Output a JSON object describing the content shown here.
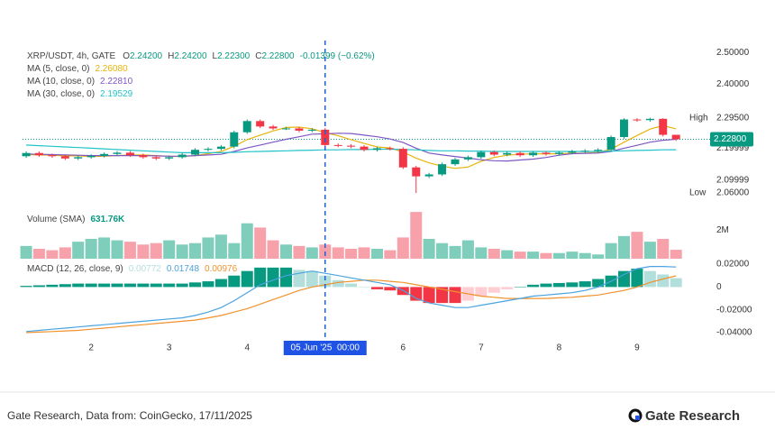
{
  "chart_data": [
    {
      "type": "candlestick",
      "title": "XRP/USDT, 4h, GATE",
      "ohlc_legend": [
        {
          "label": "O",
          "value": "2.24200"
        },
        {
          "label": "H",
          "value": "2.24200"
        },
        {
          "label": "L",
          "value": "2.22300"
        },
        {
          "label": "C",
          "value": "2.22800"
        }
      ],
      "change": "-0.01399 (−0.62%)",
      "x": [
        1.167,
        1.333,
        1.5,
        1.667,
        1.833,
        2,
        2.167,
        2.333,
        2.5,
        2.667,
        2.833,
        3,
        3.167,
        3.333,
        3.5,
        3.667,
        3.833,
        4,
        4.167,
        4.333,
        4.5,
        4.667,
        4.833,
        5,
        5.167,
        5.333,
        5.5,
        5.667,
        5.833,
        6,
        6.167,
        6.333,
        6.5,
        6.667,
        6.833,
        7,
        7.167,
        7.333,
        7.5,
        7.667,
        7.833,
        8,
        8.167,
        8.333,
        8.5,
        8.667,
        8.833,
        9,
        9.167,
        9.333,
        9.5
      ],
      "open": [
        2.175,
        2.185,
        2.178,
        2.175,
        2.168,
        2.172,
        2.176,
        2.182,
        2.186,
        2.178,
        2.172,
        2.168,
        2.172,
        2.18,
        2.195,
        2.198,
        2.205,
        2.25,
        2.285,
        2.268,
        2.262,
        2.262,
        2.255,
        2.258,
        2.21,
        2.208,
        2.205,
        2.195,
        2.2,
        2.198,
        2.14,
        2.112,
        2.118,
        2.15,
        2.165,
        2.172,
        2.188,
        2.18,
        2.185,
        2.178,
        2.186,
        2.182,
        2.186,
        2.19,
        2.192,
        2.195,
        2.235,
        2.29,
        2.288,
        2.292,
        2.242
      ],
      "high": [
        2.19,
        2.19,
        2.183,
        2.18,
        2.177,
        2.181,
        2.187,
        2.191,
        2.191,
        2.183,
        2.177,
        2.177,
        2.185,
        2.2,
        2.203,
        2.21,
        2.255,
        2.29,
        2.29,
        2.273,
        2.267,
        2.267,
        2.263,
        2.263,
        2.215,
        2.213,
        2.21,
        2.205,
        2.205,
        2.203,
        2.145,
        2.123,
        2.155,
        2.17,
        2.177,
        2.193,
        2.193,
        2.19,
        2.19,
        2.191,
        2.191,
        2.191,
        2.195,
        2.197,
        2.2,
        2.24,
        2.294,
        2.294,
        2.295,
        2.294,
        2.242
      ],
      "low": [
        2.17,
        2.173,
        2.17,
        2.163,
        2.163,
        2.167,
        2.171,
        2.177,
        2.173,
        2.167,
        2.163,
        2.163,
        2.167,
        2.175,
        2.19,
        2.193,
        2.2,
        2.245,
        2.263,
        2.257,
        2.257,
        2.25,
        2.25,
        2.205,
        2.203,
        2.2,
        2.19,
        2.19,
        2.193,
        2.135,
        2.06,
        2.107,
        2.113,
        2.145,
        2.16,
        2.167,
        2.175,
        2.175,
        2.173,
        2.173,
        2.177,
        2.177,
        2.181,
        2.185,
        2.187,
        2.19,
        2.23,
        2.283,
        2.283,
        2.237,
        2.223
      ],
      "close": [
        2.185,
        2.178,
        2.175,
        2.168,
        2.172,
        2.176,
        2.182,
        2.186,
        2.178,
        2.172,
        2.168,
        2.172,
        2.18,
        2.195,
        2.198,
        2.205,
        2.25,
        2.285,
        2.268,
        2.262,
        2.262,
        2.255,
        2.258,
        2.21,
        2.208,
        2.205,
        2.195,
        2.2,
        2.198,
        2.14,
        2.112,
        2.118,
        2.15,
        2.165,
        2.172,
        2.188,
        2.18,
        2.185,
        2.178,
        2.186,
        2.182,
        2.186,
        2.19,
        2.192,
        2.195,
        2.235,
        2.29,
        2.288,
        2.292,
        2.242,
        2.228
      ],
      "up_color": "#089981",
      "down_color": "#f23645",
      "series": [
        {
          "name": "MA (5, close, 0)",
          "value_label": "2.26080",
          "color": "#e8b40c",
          "values": [
            2.18,
            2.179,
            2.178,
            2.176,
            2.176,
            2.174,
            2.175,
            2.177,
            2.179,
            2.179,
            2.177,
            2.175,
            2.174,
            2.177,
            2.183,
            2.19,
            2.206,
            2.227,
            2.241,
            2.254,
            2.265,
            2.266,
            2.261,
            2.249,
            2.239,
            2.227,
            2.215,
            2.204,
            2.201,
            2.188,
            2.169,
            2.154,
            2.144,
            2.137,
            2.141,
            2.159,
            2.171,
            2.178,
            2.181,
            2.183,
            2.182,
            2.183,
            2.184,
            2.185,
            2.187,
            2.197,
            2.219,
            2.24,
            2.26,
            2.271,
            2.2608
          ]
        },
        {
          "name": "MA (10, close, 0)",
          "value_label": "2.22810",
          "color": "#7e57c2",
          "values": [
            2.182,
            2.181,
            2.18,
            2.179,
            2.178,
            2.177,
            2.177,
            2.177,
            2.177,
            2.177,
            2.176,
            2.175,
            2.175,
            2.177,
            2.179,
            2.181,
            2.19,
            2.201,
            2.21,
            2.219,
            2.228,
            2.236,
            2.244,
            2.245,
            2.247,
            2.246,
            2.241,
            2.236,
            2.229,
            2.218,
            2.2,
            2.185,
            2.179,
            2.174,
            2.169,
            2.164,
            2.161,
            2.16,
            2.163,
            2.166,
            2.171,
            2.178,
            2.183,
            2.184,
            2.185,
            2.19,
            2.2,
            2.209,
            2.219,
            2.225,
            2.2281
          ]
        },
        {
          "name": "MA (30, close, 0)",
          "value_label": "2.19529",
          "color": "#22c3c9",
          "values": [
            2.21,
            2.208,
            2.206,
            2.204,
            2.202,
            2.2,
            2.198,
            2.196,
            2.194,
            2.192,
            2.19,
            2.188,
            2.186,
            2.186,
            2.186,
            2.186,
            2.187,
            2.189,
            2.19,
            2.191,
            2.192,
            2.193,
            2.194,
            2.195,
            2.195,
            2.196,
            2.196,
            2.197,
            2.197,
            2.196,
            2.195,
            2.193,
            2.192,
            2.192,
            2.191,
            2.191,
            2.19,
            2.19,
            2.19,
            2.19,
            2.19,
            2.19,
            2.19,
            2.19,
            2.19,
            2.191,
            2.192,
            2.193,
            2.194,
            2.195,
            2.19529
          ]
        }
      ],
      "xlim": [
        1.12,
        9.96
      ],
      "xticks": [
        2,
        3,
        4,
        6,
        7,
        8,
        9
      ],
      "ylim": [
        2.015,
        2.537
      ],
      "yticks": [
        {
          "value": 2.5,
          "label": "2.50000"
        },
        {
          "value": 2.4,
          "label": "2.40000"
        },
        2.19999,
        2.09999
      ],
      "last_price": {
        "value": 2.228,
        "label": "2.22800"
      },
      "high_marker": {
        "name": "High",
        "value": 2.295,
        "label": "2.29500"
      },
      "low_marker": {
        "name": "Low",
        "value": 2.06,
        "label": "2.06000"
      },
      "crosshair": {
        "x": 5,
        "label": "05 Jun '25  00:00"
      }
    },
    {
      "type": "bar",
      "title": "Volume (SMA)",
      "value_label": "631.76K",
      "values": [
        900000,
        700000,
        600000,
        800000,
        1200000,
        1400000,
        1500000,
        1300000,
        1200000,
        1000000,
        1100000,
        1300000,
        1000000,
        1100000,
        1500000,
        1700000,
        1100000,
        2500000,
        2200000,
        1300000,
        1000000,
        900000,
        800000,
        1000000,
        800000,
        700000,
        800000,
        700000,
        600000,
        1500000,
        3300000,
        1400000,
        1100000,
        900000,
        1300000,
        800000,
        700000,
        600000,
        500000,
        500000,
        400000,
        400000,
        500000,
        400000,
        300000,
        1100000,
        1600000,
        1900000,
        1200000,
        1400000,
        631760
      ],
      "up_color": "#7fcdbb",
      "down_color": "#f7a1aa",
      "ylim": [
        0,
        3500000
      ],
      "yticks": [
        {
          "value": 2000000,
          "label": "2M"
        }
      ]
    },
    {
      "type": "macd",
      "title": "MACD (12, 26, close, 9)",
      "histogram": {
        "value_label": "0.00772",
        "color": "#b2dfdb",
        "values": [
          0.001,
          0.0015,
          0.002,
          0.0025,
          0.003,
          0.003,
          0.003,
          0.003,
          0.003,
          0.003,
          0.003,
          0.003,
          0.003,
          0.004,
          0.005,
          0.007,
          0.01,
          0.014,
          0.017,
          0.017,
          0.017,
          0.015,
          0.014,
          0.01,
          0.006,
          0.003,
          0,
          -0.002,
          -0.003,
          -0.007,
          -0.012,
          -0.014,
          -0.014,
          -0.014,
          -0.012,
          -0.008,
          -0.005,
          -0.002,
          0,
          0.002,
          0.003,
          0.0035,
          0.004,
          0.005,
          0.007,
          0.01,
          0.014,
          0.016,
          0.014,
          0.011,
          0.00772
        ]
      },
      "macd": {
        "value_label": "0.01748",
        "color": "#4aa3df",
        "values": [
          -0.039,
          -0.038,
          -0.037,
          -0.036,
          -0.035,
          -0.034,
          -0.033,
          -0.032,
          -0.031,
          -0.03,
          -0.029,
          -0.028,
          -0.027,
          -0.025,
          -0.022,
          -0.018,
          -0.012,
          -0.005,
          0.002,
          0.006,
          0.01,
          0.012,
          0.014,
          0.012,
          0.01,
          0.008,
          0.006,
          0.004,
          0.002,
          -0.003,
          -0.01,
          -0.014,
          -0.016,
          -0.018,
          -0.018,
          -0.016,
          -0.014,
          -0.012,
          -0.01,
          -0.008,
          -0.007,
          -0.006,
          -0.005,
          -0.003,
          0,
          0.005,
          0.011,
          0.016,
          0.018,
          0.018,
          0.01748
        ]
      },
      "signal": {
        "value_label": "0.00976",
        "color": "#f0922e",
        "values": [
          -0.04,
          -0.0395,
          -0.039,
          -0.0385,
          -0.038,
          -0.037,
          -0.036,
          -0.035,
          -0.034,
          -0.033,
          -0.032,
          -0.031,
          -0.03,
          -0.029,
          -0.027,
          -0.025,
          -0.022,
          -0.019,
          -0.015,
          -0.011,
          -0.007,
          -0.003,
          0,
          0.002,
          0.004,
          0.005,
          0.006,
          0.006,
          0.005,
          0.004,
          0.002,
          0,
          -0.002,
          -0.004,
          -0.006,
          -0.008,
          -0.009,
          -0.01,
          -0.01,
          -0.01,
          -0.01,
          -0.0095,
          -0.009,
          -0.008,
          -0.007,
          -0.005,
          -0.003,
          0,
          0.004,
          0.007,
          0.00976
        ]
      },
      "up_strong": "#089981",
      "down_strong": "#f23645",
      "down_light": "#ffcdd2",
      "ylim": [
        -0.0447,
        0.0232
      ],
      "yticks": [
        {
          "value": 0.02,
          "label": "0.02000"
        },
        0,
        {
          "value": -0.02,
          "label": "-0.02000"
        },
        {
          "value": -0.04,
          "label": "-0.04000"
        }
      ]
    }
  ],
  "footer": {
    "source": "Gate Research, Data from: CoinGecko, 17/11/2025",
    "brand": "Gate Research"
  }
}
